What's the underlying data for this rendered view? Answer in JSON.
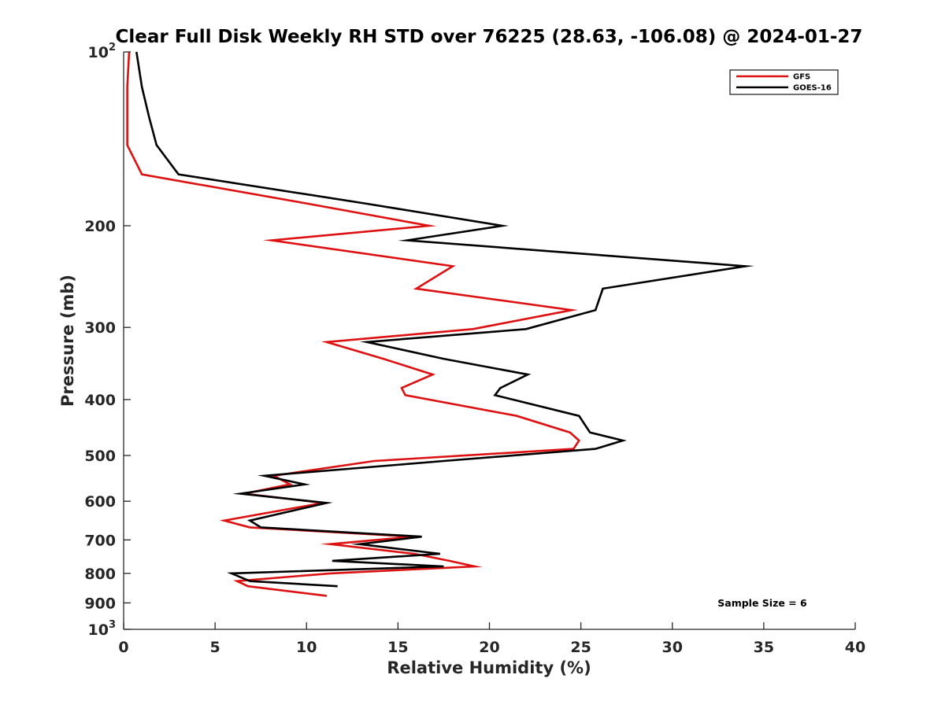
{
  "chart_data": {
    "type": "line",
    "title": "Clear Full Disk Weekly RH STD over 76225 (28.63, -106.08) @ 2024-01-27",
    "xlabel": "Relative Humidity (%)",
    "ylabel": "Pressure (mb)",
    "xlim": [
      0,
      40
    ],
    "ylim": [
      100,
      1000
    ],
    "yscale": "log",
    "y_reversed": true,
    "x_ticks": [
      0,
      5,
      10,
      15,
      20,
      25,
      30,
      35,
      40
    ],
    "x_tick_labels": [
      "0",
      "5",
      "10",
      "15",
      "20",
      "25",
      "30",
      "35",
      "40"
    ],
    "y_ticks": [
      100,
      200,
      300,
      400,
      500,
      600,
      700,
      800,
      900,
      1000
    ],
    "y_tick_labels": [
      {
        "base": "10",
        "sup": "2"
      },
      {
        "base": "200"
      },
      {
        "base": "300"
      },
      {
        "base": "400"
      },
      {
        "base": "500"
      },
      {
        "base": "600"
      },
      {
        "base": "700"
      },
      {
        "base": "800"
      },
      {
        "base": "900"
      },
      {
        "base": "10",
        "sup": "3"
      }
    ],
    "grid": false,
    "legend_position": "top-right",
    "annotation": "Sample Size = 6",
    "series": [
      {
        "name": "GFS",
        "color": "#dd1111",
        "points": [
          [
            0.3,
            100
          ],
          [
            0.2,
            115
          ],
          [
            0.2,
            130
          ],
          [
            0.2,
            145
          ],
          [
            1.0,
            163
          ],
          [
            10.0,
            183
          ],
          [
            16.7,
            200
          ],
          [
            8.1,
            212
          ],
          [
            18.0,
            235
          ],
          [
            16.0,
            257
          ],
          [
            24.5,
            280
          ],
          [
            19.1,
            302
          ],
          [
            11.1,
            318
          ],
          [
            14.2,
            340
          ],
          [
            16.9,
            362
          ],
          [
            15.2,
            382
          ],
          [
            15.4,
            393
          ],
          [
            21.5,
            427
          ],
          [
            24.4,
            456
          ],
          [
            24.9,
            471
          ],
          [
            24.6,
            487
          ],
          [
            13.7,
            511
          ],
          [
            8.2,
            542
          ],
          [
            9.1,
            561
          ],
          [
            6.6,
            582
          ],
          [
            10.9,
            604
          ],
          [
            5.5,
            648
          ],
          [
            6.9,
            666
          ],
          [
            15.8,
            691
          ],
          [
            11.3,
            712
          ],
          [
            15.9,
            740
          ],
          [
            17.8,
            761
          ],
          [
            19.2,
            778
          ],
          [
            11.3,
            800
          ],
          [
            6.2,
            825
          ],
          [
            6.8,
            842
          ],
          [
            11.1,
            875
          ]
        ]
      },
      {
        "name": "GOES-16",
        "color": "#000000",
        "points": [
          [
            0.7,
            100
          ],
          [
            1.0,
            115
          ],
          [
            1.4,
            130
          ],
          [
            1.8,
            145
          ],
          [
            3.0,
            163
          ],
          [
            13.2,
            183
          ],
          [
            20.7,
            200
          ],
          [
            15.5,
            212
          ],
          [
            34.0,
            235
          ],
          [
            26.2,
            257
          ],
          [
            25.8,
            280
          ],
          [
            22.0,
            302
          ],
          [
            13.3,
            318
          ],
          [
            17.5,
            340
          ],
          [
            22.1,
            362
          ],
          [
            20.6,
            382
          ],
          [
            20.3,
            393
          ],
          [
            24.9,
            427
          ],
          [
            25.5,
            456
          ],
          [
            27.3,
            471
          ],
          [
            25.8,
            487
          ],
          [
            17.5,
            511
          ],
          [
            7.7,
            542
          ],
          [
            9.9,
            561
          ],
          [
            6.4,
            582
          ],
          [
            11.1,
            604
          ],
          [
            6.9,
            648
          ],
          [
            7.5,
            666
          ],
          [
            16.3,
            691
          ],
          [
            12.9,
            712
          ],
          [
            17.3,
            740
          ],
          [
            11.4,
            761
          ],
          [
            17.5,
            778
          ],
          [
            5.9,
            800
          ],
          [
            6.9,
            825
          ],
          [
            11.7,
            842
          ]
        ]
      }
    ]
  }
}
